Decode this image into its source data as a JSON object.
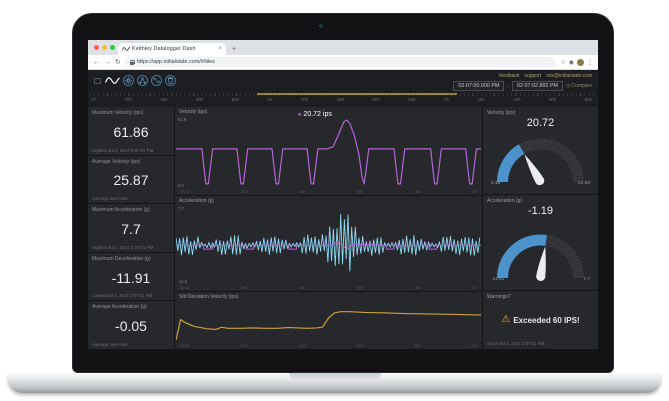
{
  "browser": {
    "tab_title": "Keithley Datalogger Dash",
    "tab_close": "×",
    "new_tab": "+",
    "back": "←",
    "forward": "→",
    "reload": "↻",
    "url": "https://app.initialstate.com/#/tiles",
    "bookmark_star": "☆",
    "extension_icon": "◉",
    "menu_dots": "⋮"
  },
  "app": {
    "header_links": [
      "feedback",
      "support",
      "rick@initialstate.com"
    ],
    "time_range": {
      "start": "02:07:00.000 PM",
      "separator": ":",
      "end": "02:07:02.892 PM",
      "compare_icon": "◷",
      "compare": "Compare"
    }
  },
  "timeline": {
    "ticks": [
      ":07",
      ".200",
      ".400",
      ".600",
      ".800",
      ":01",
      ".200",
      ".400",
      ".600",
      ".800",
      ":02",
      ".200",
      ".400",
      ".600",
      ".800"
    ],
    "selection": {
      "left_pct": 33,
      "width_pct": 39.5
    }
  },
  "stats": [
    {
      "title": "Maximum Velocity (ips)",
      "value": "61.86",
      "footer": "Highest Jul 2, 2017 2:07:01 PM"
    },
    {
      "title": "Average Velocity (ips)",
      "value": "25.87",
      "footer": "Average over time"
    },
    {
      "title": "Maximum Acceleration (g)",
      "value": "7.7",
      "footer": "Highest Jul 2, 2017 2:07:01 PM"
    },
    {
      "title": "Maximum Deceleration (g)",
      "value": "-11.91",
      "footer": "Lowest Jul 2, 2017 2:07:01 PM"
    },
    {
      "title": "Average Acceleration (g)",
      "value": "-0.05",
      "footer": "Average over time"
    }
  ],
  "chart_data": [
    {
      "type": "line",
      "title": "Velocity (ips)",
      "ylabel_top": "61.9",
      "ylabel_bottom": "0.2",
      "color": "#b565d8",
      "tooltip_value": "20.72 ips",
      "x_ticks": [
        "02:07",
        ".200",
        ".400",
        ".600",
        ".800",
        ":02"
      ],
      "points": [
        [
          0,
          55
        ],
        [
          8.5,
          55
        ],
        [
          9.2,
          26
        ],
        [
          9.8,
          4
        ],
        [
          10.6,
          4
        ],
        [
          11.2,
          26
        ],
        [
          12,
          55
        ],
        [
          20,
          55
        ],
        [
          20.7,
          26
        ],
        [
          21.3,
          4
        ],
        [
          22.1,
          4
        ],
        [
          22.7,
          26
        ],
        [
          23.5,
          55
        ],
        [
          31.5,
          55
        ],
        [
          32.2,
          26
        ],
        [
          32.8,
          4
        ],
        [
          33.6,
          4
        ],
        [
          34.2,
          26
        ],
        [
          35,
          55
        ],
        [
          43,
          55
        ],
        [
          43.7,
          26
        ],
        [
          44.3,
          4
        ],
        [
          45.1,
          4
        ],
        [
          45.7,
          26
        ],
        [
          46.5,
          55
        ],
        [
          49.5,
          55
        ],
        [
          51.5,
          58
        ],
        [
          53.5,
          78
        ],
        [
          55,
          94
        ],
        [
          56,
          97
        ],
        [
          57,
          92
        ],
        [
          58.5,
          74
        ],
        [
          60,
          46
        ],
        [
          61,
          14
        ],
        [
          61.7,
          4
        ],
        [
          62.4,
          26
        ],
        [
          63.2,
          55
        ],
        [
          71.5,
          55
        ],
        [
          72.2,
          26
        ],
        [
          72.8,
          4
        ],
        [
          73.6,
          4
        ],
        [
          74.2,
          26
        ],
        [
          75,
          55
        ],
        [
          83.5,
          55
        ],
        [
          84.2,
          26
        ],
        [
          84.8,
          4
        ],
        [
          85.6,
          4
        ],
        [
          86.2,
          26
        ],
        [
          87,
          55
        ],
        [
          95,
          55
        ],
        [
          95.7,
          26
        ],
        [
          96.3,
          4
        ],
        [
          97.1,
          4
        ],
        [
          97.7,
          26
        ],
        [
          98.5,
          55
        ],
        [
          100,
          55
        ]
      ]
    },
    {
      "type": "line",
      "title": "Acceleration (g)",
      "ylabel_top": "7.7",
      "ylabel_bottom": "-11.9",
      "color": "#8fd8f2",
      "median_color": "#b565d8",
      "x_ticks": [
        "02:07",
        ".200",
        ".400",
        ".600",
        ".800",
        ":02"
      ],
      "seed": 7,
      "envelope": [
        [
          0,
          13
        ],
        [
          7,
          12
        ],
        [
          9,
          4
        ],
        [
          12,
          4
        ],
        [
          14,
          13
        ],
        [
          21,
          14
        ],
        [
          23,
          4
        ],
        [
          26,
          4
        ],
        [
          28,
          13
        ],
        [
          35,
          14
        ],
        [
          37,
          4
        ],
        [
          40,
          4
        ],
        [
          42,
          14
        ],
        [
          47,
          15
        ],
        [
          50,
          26
        ],
        [
          53,
          44
        ],
        [
          55,
          46
        ],
        [
          57,
          42
        ],
        [
          59,
          25
        ],
        [
          61,
          14
        ],
        [
          67,
          13
        ],
        [
          69,
          4
        ],
        [
          72,
          4
        ],
        [
          74,
          13
        ],
        [
          81,
          14
        ],
        [
          83,
          4
        ],
        [
          86,
          4
        ],
        [
          88,
          13
        ],
        [
          94,
          14
        ],
        [
          100,
          13
        ]
      ],
      "median_points": [
        [
          0,
          50
        ],
        [
          9,
          50
        ],
        [
          9,
          45
        ],
        [
          12,
          45
        ],
        [
          12,
          50
        ],
        [
          23,
          50
        ],
        [
          23,
          45
        ],
        [
          25.5,
          45
        ],
        [
          25.5,
          50
        ],
        [
          37,
          50
        ],
        [
          37,
          45
        ],
        [
          39.5,
          45
        ],
        [
          39.5,
          50
        ],
        [
          51,
          50
        ],
        [
          53,
          55
        ],
        [
          56,
          45
        ],
        [
          58,
          52
        ],
        [
          69,
          50
        ],
        [
          69,
          45
        ],
        [
          71.5,
          45
        ],
        [
          71.5,
          50
        ],
        [
          83,
          50
        ],
        [
          83,
          45
        ],
        [
          85.5,
          45
        ],
        [
          85.5,
          50
        ],
        [
          100,
          50
        ]
      ]
    },
    {
      "type": "line",
      "title": "Std Deviation Velocity (ips)",
      "color": "#c9a23f",
      "x_ticks": [
        "02:07",
        ".200",
        ".400",
        ".600",
        ".800",
        ":02"
      ],
      "points": [
        [
          0,
          2
        ],
        [
          1.5,
          56
        ],
        [
          3,
          48
        ],
        [
          6,
          38
        ],
        [
          10,
          32
        ],
        [
          13,
          30
        ],
        [
          15,
          36
        ],
        [
          17,
          33
        ],
        [
          21,
          33
        ],
        [
          25,
          34
        ],
        [
          29,
          33
        ],
        [
          33,
          33
        ],
        [
          37,
          35
        ],
        [
          40,
          34
        ],
        [
          43,
          33
        ],
        [
          46,
          34
        ],
        [
          48,
          36
        ],
        [
          50,
          60
        ],
        [
          52,
          74
        ],
        [
          54,
          77
        ],
        [
          57,
          77
        ],
        [
          62,
          75
        ],
        [
          68,
          74
        ],
        [
          75,
          72
        ],
        [
          82,
          71
        ],
        [
          90,
          70
        ],
        [
          100,
          68
        ]
      ]
    }
  ],
  "gauges": [
    {
      "title": "Velocity (ips)",
      "value": "20.72",
      "min": "0.16",
      "max": "61.86",
      "fraction": 0.333,
      "arc_color": "#4c93cc"
    },
    {
      "title": "Acceleration (g)",
      "value": "-1.19",
      "min": "-11.91",
      "max": "7.7",
      "fraction": 0.547,
      "arc_color": "#4c93cc"
    }
  ],
  "warning": {
    "title": "Warnings?",
    "icon": "⚠",
    "message": "Exceeded 60 IPS!",
    "footer": "Since Jul 2, 2017 2:07:01 PM"
  }
}
